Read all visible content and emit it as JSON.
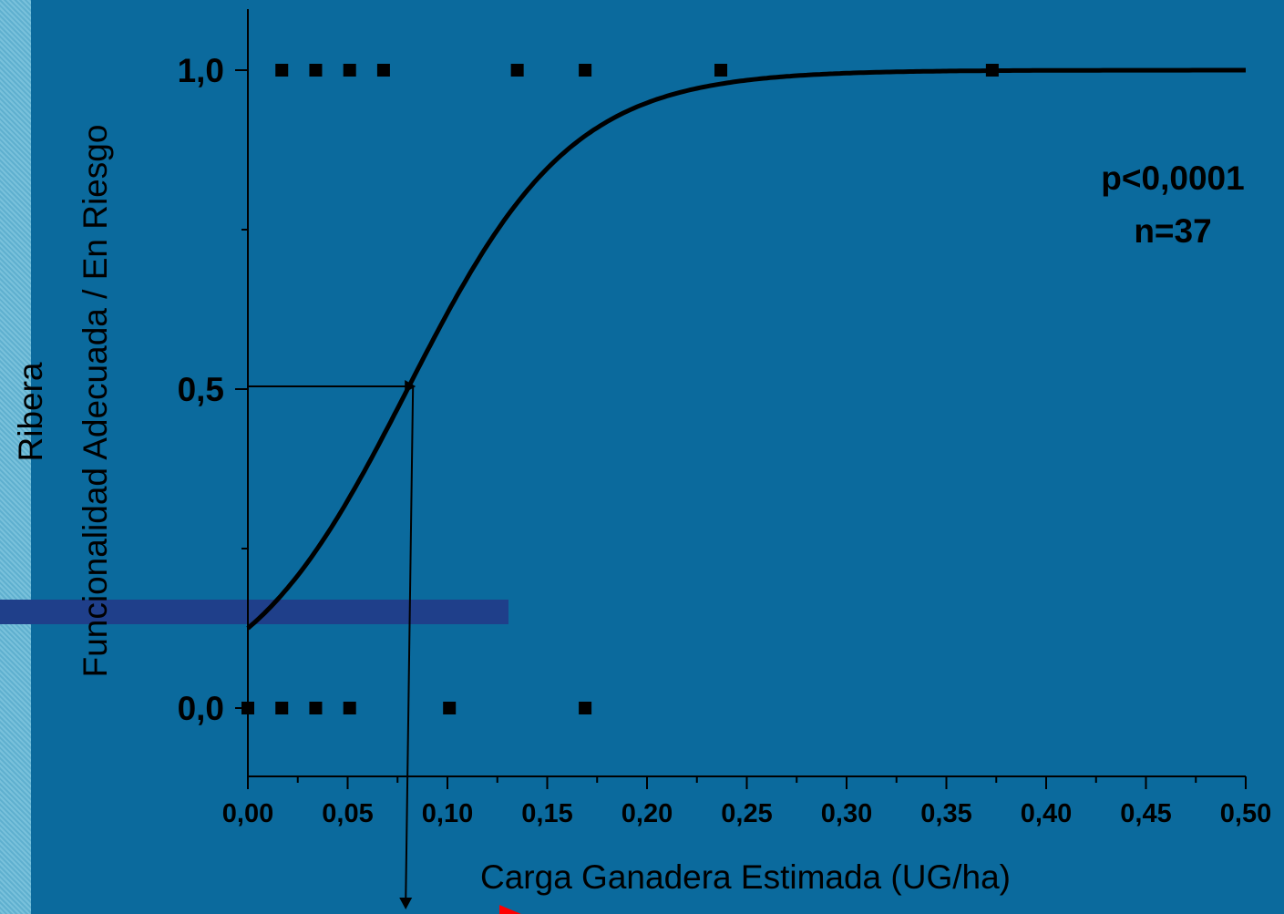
{
  "chart_data": {
    "type": "scatter",
    "title": "",
    "xlabel": "Carga Ganadera Estimada (UG/ha)",
    "ylabel_line1": "Ribera",
    "ylabel_line2": "Funcionalidad Adecuada / En Riesgo",
    "xlim": [
      0,
      0.5
    ],
    "ylim": [
      -0.1,
      1.1
    ],
    "x_ticks": [
      0,
      0.05,
      0.1,
      0.15,
      0.2,
      0.25,
      0.3,
      0.35,
      0.4,
      0.45,
      0.5
    ],
    "x_tick_labels": [
      "0,00",
      "0,05",
      "0,10",
      "0,15",
      "0,20",
      "0,25",
      "0,30",
      "0,35",
      "0,40",
      "0,45",
      "0,50"
    ],
    "y_ticks": [
      0,
      0.5,
      1.0
    ],
    "y_tick_labels": [
      "0,0",
      "0,5",
      "1,0"
    ],
    "y_minor_ticks": [
      0.25,
      0.75
    ],
    "series": [
      {
        "type": "scatter",
        "x": [
          0.017,
          0.034,
          0.051,
          0.068,
          0.135,
          0.169,
          0.237,
          0.373,
          0.0,
          0.017,
          0.034,
          0.051,
          0.101,
          0.169
        ],
        "y": [
          1,
          1,
          1,
          1,
          1,
          1,
          1,
          1,
          0,
          0,
          0,
          0,
          0,
          0
        ]
      },
      {
        "type": "line",
        "model": "logistic",
        "x50": 0.08,
        "y_at_x0": 0.125
      }
    ],
    "threshold": {
      "x": 0.08,
      "y": 0.5
    },
    "annotations": [
      "p<0,0001",
      "n=37"
    ],
    "colors": {
      "background": "#0b6a9d",
      "marks": "#000000",
      "accent_bar": "#1f3f8a",
      "pointer": "#ff0000"
    }
  }
}
